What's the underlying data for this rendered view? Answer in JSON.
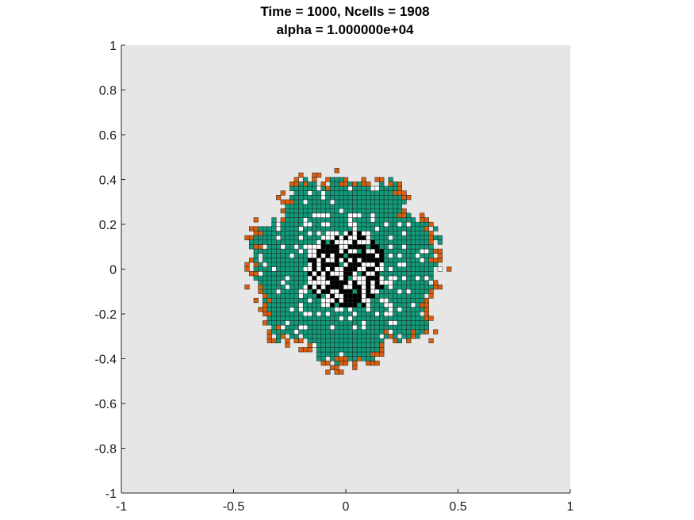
{
  "chart_data": {
    "type": "heatmap",
    "title_lines": [
      "Time = 1000, Ncells = 1908",
      "alpha = 1.000000e+04"
    ],
    "xlabel": "",
    "ylabel": "",
    "xlim": [
      -1,
      1
    ],
    "ylim": [
      -1,
      1
    ],
    "xticks": [
      -1,
      -0.5,
      0,
      0.5,
      1
    ],
    "xtick_labels": [
      "-1",
      "-0.5",
      "0",
      "0.5",
      "1"
    ],
    "yticks": [
      1,
      0.8,
      0.6,
      0.4,
      0.2,
      0,
      -0.2,
      -0.4,
      -0.6,
      -0.8,
      -1
    ],
    "ytick_labels": [
      "1",
      "0.8",
      "0.6",
      "0.4",
      "0.2",
      "0",
      "-0.2",
      "-0.4",
      "-0.6",
      "-0.8",
      "-1"
    ],
    "grid": false,
    "background_color": "#e6e6e6",
    "cell_colors": {
      "bulk": "#119a7a",
      "edge": "#d95f0e",
      "core": "#000000",
      "void": "#ffffff",
      "outline": "#222222"
    },
    "cell_size": 0.02,
    "colony_center": [
      0,
      0
    ],
    "colony_radius": 0.4,
    "core_radius": 0.18,
    "ncells": 1908
  }
}
